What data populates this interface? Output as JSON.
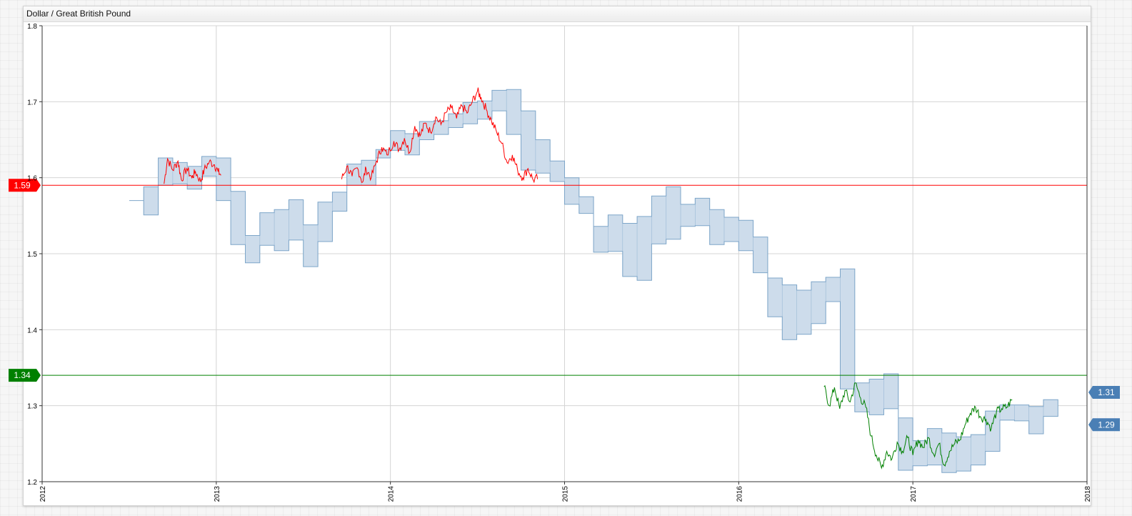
{
  "widget": {
    "title": "Dollar / Great British Pound"
  },
  "chart_data": {
    "type": "line",
    "title": "Dollar / Great British Pound",
    "xlabel": "",
    "ylabel": "",
    "x_range": [
      2012.0,
      2018.0
    ],
    "ylim": [
      1.2,
      1.8
    ],
    "x_ticks": [
      "2012",
      "2013",
      "2014",
      "2015",
      "2016",
      "2017",
      "2018"
    ],
    "y_ticks": [
      "1.2",
      "1.3",
      "1.4",
      "1.5",
      "1.6",
      "1.7",
      "1.8"
    ],
    "grid": true,
    "thresholds": [
      {
        "value": 1.59,
        "label": "1.59",
        "color": "#ff0000"
      },
      {
        "value": 1.34,
        "label": "1.34",
        "color": "#008000"
      }
    ],
    "last_values": [
      {
        "value": 1.31,
        "label": "1.31",
        "color": "#4a7fb5"
      },
      {
        "value": 1.29,
        "label": "1.29",
        "color": "#4a7fb5"
      }
    ],
    "colors": {
      "above_threshold": "#ff0000",
      "below_threshold": "#008000",
      "band_fill": "#cddceb",
      "band_stroke": "#7ea6c9"
    },
    "monthly_range": {
      "start": 2012.5,
      "step": 0.08333,
      "high": [
        1.57,
        1.588,
        1.626,
        1.62,
        1.615,
        1.628,
        1.626,
        1.582,
        1.524,
        1.554,
        1.558,
        1.571,
        1.538,
        1.568,
        1.581,
        1.618,
        1.623,
        1.637,
        1.662,
        1.658,
        1.674,
        1.675,
        1.684,
        1.699,
        1.701,
        1.715,
        1.716,
        1.688,
        1.65,
        1.622,
        1.6,
        1.575,
        1.536,
        1.551,
        1.54,
        1.549,
        1.576,
        1.588,
        1.565,
        1.573,
        1.558,
        1.548,
        1.544,
        1.522,
        1.468,
        1.459,
        1.452,
        1.463,
        1.469,
        1.48,
        1.33,
        1.335,
        1.342,
        1.284,
        1.254,
        1.27,
        1.264,
        1.259,
        1.262,
        1.293,
        1.301,
        1.301,
        1.299,
        1.308
      ],
      "low": [
        1.57,
        1.551,
        1.59,
        1.592,
        1.585,
        1.602,
        1.57,
        1.512,
        1.488,
        1.511,
        1.504,
        1.518,
        1.483,
        1.516,
        1.556,
        1.59,
        1.59,
        1.626,
        1.636,
        1.63,
        1.65,
        1.657,
        1.666,
        1.671,
        1.677,
        1.688,
        1.657,
        1.61,
        1.606,
        1.595,
        1.565,
        1.553,
        1.502,
        1.503,
        1.47,
        1.465,
        1.513,
        1.519,
        1.536,
        1.537,
        1.512,
        1.516,
        1.504,
        1.475,
        1.417,
        1.387,
        1.394,
        1.408,
        1.437,
        1.322,
        1.292,
        1.288,
        1.296,
        1.215,
        1.221,
        1.222,
        1.212,
        1.214,
        1.222,
        1.24,
        1.281,
        1.28,
        1.263,
        1.286
      ]
    },
    "price_anchors": {
      "x": [
        2012.7,
        2012.72,
        2012.75,
        2012.78,
        2012.8,
        2012.83,
        2012.86,
        2012.88,
        2012.91,
        2012.93,
        2012.96,
        2012.99,
        2013.01,
        2013.03,
        2013.72,
        2013.75,
        2013.78,
        2013.81,
        2013.84,
        2013.86,
        2013.89,
        2013.92,
        2013.95,
        2013.98,
        2014.02,
        2014.05,
        2014.08,
        2014.11,
        2014.14,
        2014.17,
        2014.2,
        2014.23,
        2014.26,
        2014.29,
        2014.32,
        2014.35,
        2014.38,
        2014.41,
        2014.44,
        2014.47,
        2014.5,
        2014.52,
        2014.55,
        2014.58,
        2014.61,
        2014.64,
        2014.67,
        2014.7,
        2014.73,
        2014.76,
        2014.79,
        2014.82,
        2014.85,
        2016.49,
        2016.52,
        2016.55,
        2016.58,
        2016.61,
        2016.64,
        2016.67,
        2016.7,
        2016.73,
        2016.76,
        2016.79,
        2016.82,
        2016.85,
        2016.88,
        2016.91,
        2016.94,
        2016.97,
        2017.0,
        2017.03,
        2017.06,
        2017.09,
        2017.12,
        2017.15,
        2017.18,
        2017.21,
        2017.24,
        2017.27,
        2017.3,
        2017.33,
        2017.36,
        2017.39,
        2017.42,
        2017.45,
        2017.48,
        2017.51,
        2017.54,
        2017.57
      ],
      "y": [
        1.592,
        1.625,
        1.61,
        1.622,
        1.597,
        1.612,
        1.6,
        1.608,
        1.595,
        1.61,
        1.621,
        1.617,
        1.608,
        1.603,
        1.598,
        1.615,
        1.602,
        1.613,
        1.594,
        1.612,
        1.6,
        1.622,
        1.64,
        1.63,
        1.648,
        1.637,
        1.652,
        1.633,
        1.668,
        1.655,
        1.672,
        1.66,
        1.68,
        1.67,
        1.686,
        1.692,
        1.678,
        1.695,
        1.685,
        1.7,
        1.714,
        1.706,
        1.69,
        1.675,
        1.66,
        1.645,
        1.62,
        1.63,
        1.61,
        1.6,
        1.612,
        1.597,
        1.6,
        1.325,
        1.3,
        1.324,
        1.296,
        1.32,
        1.305,
        1.33,
        1.31,
        1.298,
        1.26,
        1.235,
        1.218,
        1.24,
        1.23,
        1.252,
        1.24,
        1.258,
        1.235,
        1.255,
        1.245,
        1.258,
        1.236,
        1.25,
        1.222,
        1.24,
        1.25,
        1.255,
        1.275,
        1.29,
        1.298,
        1.285,
        1.282,
        1.27,
        1.292,
        1.296,
        1.298,
        1.308
      ]
    }
  }
}
